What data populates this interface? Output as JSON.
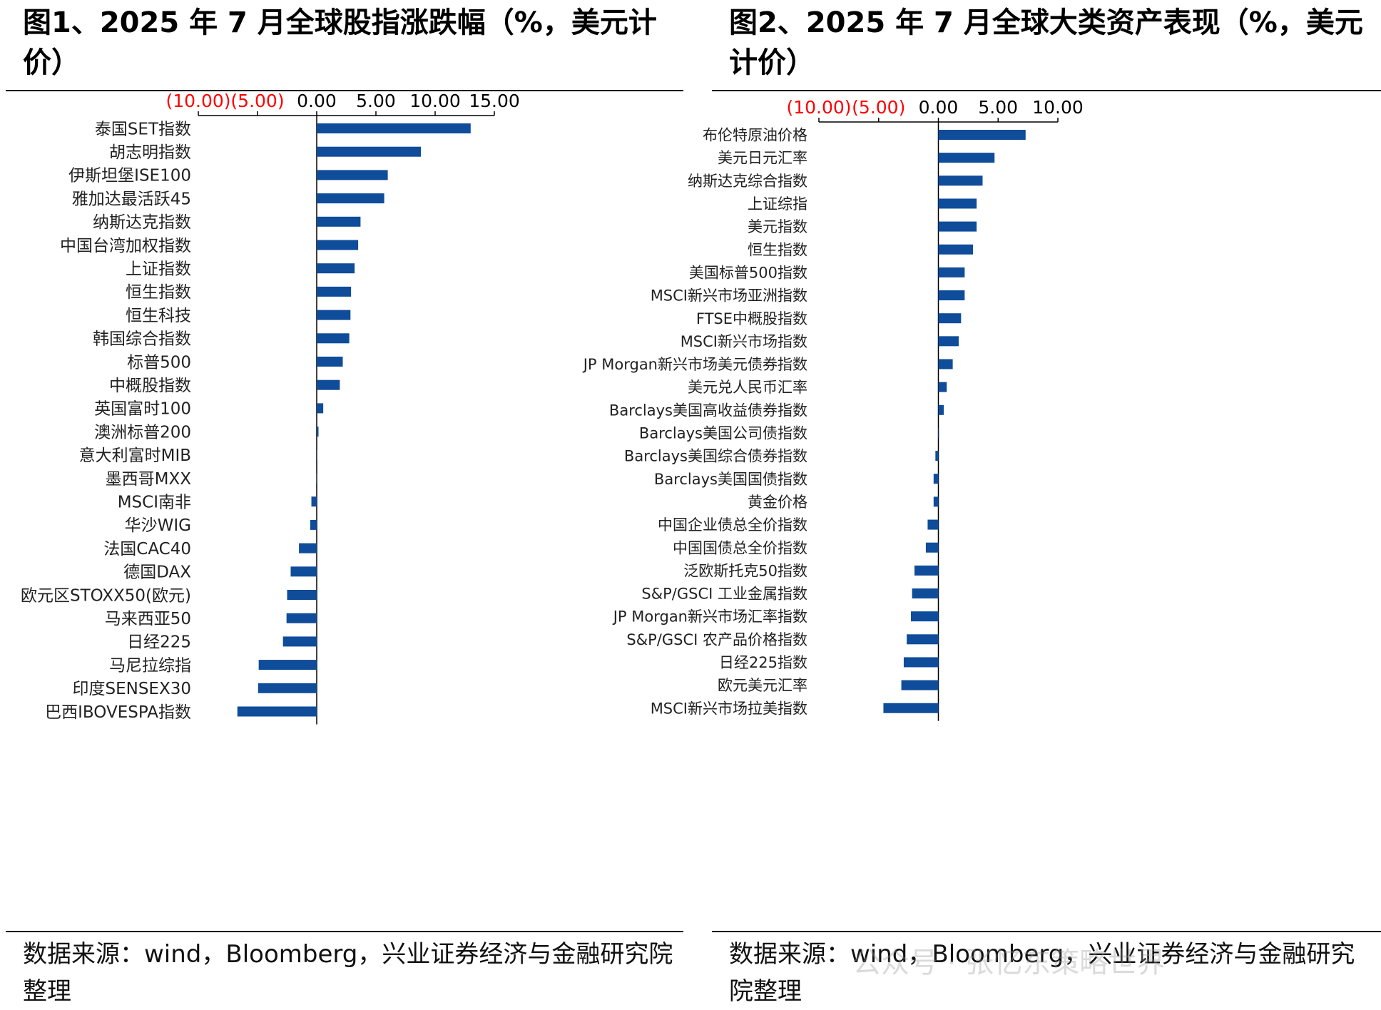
{
  "charts_meta": [
    {
      "title": "图1、2025 年 7 月全球股指涨跌幅（%，美元计价）",
      "source": "数据来源：wind，Bloomberg，兴业证券经济与金融研究院整理"
    },
    {
      "title": "图2、2025 年 7 月全球大类资产表现（%，美元计价）",
      "source": "数据来源：wind，Bloomberg，兴业证券经济与金融研究院整理"
    }
  ],
  "watermark": "公众号 · 张忆东策略世界",
  "colors": {
    "bar": "#0F4C9A",
    "negative_tick": "#FF0000",
    "axis": "#000000"
  },
  "chart_data": [
    {
      "type": "bar",
      "orientation": "horizontal",
      "xaxis_position": "top",
      "xlim": [
        -10,
        15
      ],
      "ticks": [
        -10,
        -5,
        0,
        5,
        10,
        15
      ],
      "tick_labels": [
        "(10.00)",
        "(5.00)",
        "0.00",
        "5.00",
        "10.00",
        "15.00"
      ],
      "categories": [
        "泰国SET指数",
        "胡志明指数",
        "伊斯坦堡ISE100",
        "雅加达最活跃45",
        "纳斯达克指数",
        "中国台湾加权指数",
        "上证指数",
        "恒生指数",
        "恒生科技",
        "韩国综合指数",
        "标普500",
        "中概股指数",
        "英国富时100",
        "澳洲标普200",
        "意大利富时MIB",
        "墨西哥MXX",
        "MSCI南非",
        "华沙WIG",
        "法国CAC40",
        "德国DAX",
        "欧元区STOXX50(欧元)",
        "马来西亚50",
        "日经225",
        "马尼拉综指",
        "印度SENSEX30",
        "巴西IBOVESPA指数"
      ],
      "values": [
        13.0,
        8.8,
        6.0,
        5.7,
        3.7,
        3.5,
        3.2,
        2.9,
        2.85,
        2.75,
        2.2,
        1.95,
        0.55,
        0.15,
        0.02,
        -0.02,
        -0.45,
        -0.55,
        -1.5,
        -2.2,
        -2.5,
        -2.55,
        -2.85,
        -4.9,
        -4.95,
        -6.7
      ]
    },
    {
      "type": "bar",
      "orientation": "horizontal",
      "xaxis_position": "top",
      "xlim": [
        -10,
        10
      ],
      "ticks": [
        -10,
        -5,
        0,
        5,
        10
      ],
      "tick_labels": [
        "(10.00)",
        "(5.00)",
        "0.00",
        "5.00",
        "10.00"
      ],
      "categories": [
        "布伦特原油价格",
        "美元日元汇率",
        "纳斯达克综合指数",
        "上证综指",
        "美元指数",
        "恒生指数",
        "美国标普500指数",
        "MSCI新兴市场亚洲指数",
        "FTSE中概股指数",
        "MSCI新兴市场指数",
        "JP Morgan新兴市场美元债券指数",
        "美元兑人民币汇率",
        "Barclays美国高收益债券指数",
        "Barclays美国公司债指数",
        "Barclays美国综合债券指数",
        "Barclays美国国债指数",
        "黄金价格",
        "中国企业债总全价指数",
        "中国国债总全价指数",
        "泛欧斯托克50指数",
        "S&P/GSCI 工业金属指数",
        "JP Morgan新兴市场汇率指数",
        "S&P/GSCI 农产品价格指数",
        "日经225指数",
        "欧元美元汇率",
        "MSCI新兴市场拉美指数"
      ],
      "values": [
        7.3,
        4.7,
        3.7,
        3.2,
        3.2,
        2.9,
        2.2,
        2.2,
        1.9,
        1.7,
        1.2,
        0.7,
        0.45,
        0.05,
        -0.25,
        -0.4,
        -0.4,
        -0.9,
        -1.05,
        -2.0,
        -2.2,
        -2.3,
        -2.65,
        -2.9,
        -3.1,
        -4.6
      ]
    }
  ]
}
